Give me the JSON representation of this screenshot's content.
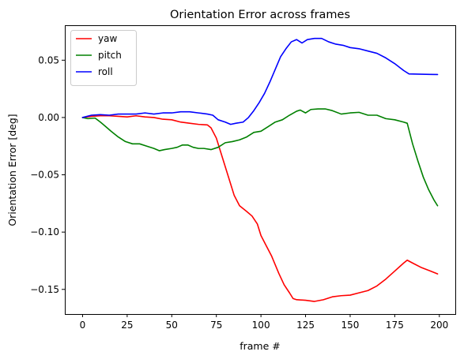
{
  "chart_data": {
    "type": "line",
    "title": "Orientation Error across frames",
    "xlabel": "frame #",
    "ylabel": "Orientation Error [deg]",
    "xlim": [
      -9.95,
      208.95
    ],
    "ylim": [
      -0.1715,
      0.0805
    ],
    "xticks": [
      0,
      25,
      50,
      75,
      100,
      125,
      150,
      175,
      200
    ],
    "xtick_labels": [
      "0",
      "25",
      "50",
      "75",
      "100",
      "125",
      "150",
      "175",
      "200"
    ],
    "yticks": [
      0.05,
      0.0,
      -0.05,
      -0.1,
      -0.15
    ],
    "ytick_labels": [
      "0.05",
      "0.00",
      "−0.05",
      "−0.10",
      "−0.15"
    ],
    "grid": false,
    "legend_position": "top-left",
    "series": [
      {
        "name": "yaw",
        "color": "#ff0000",
        "points": [
          [
            0,
            0.0
          ],
          [
            5,
            0.001
          ],
          [
            10,
            0.0015
          ],
          [
            15,
            0.0015
          ],
          [
            20,
            0.001
          ],
          [
            25,
            0.0005
          ],
          [
            30,
            0.0015
          ],
          [
            35,
            0.0005
          ],
          [
            40,
            0.0
          ],
          [
            45,
            -0.0015
          ],
          [
            50,
            -0.002
          ],
          [
            55,
            -0.004
          ],
          [
            60,
            -0.005
          ],
          [
            65,
            -0.006
          ],
          [
            70,
            -0.0065
          ],
          [
            72,
            -0.009
          ],
          [
            75,
            -0.018
          ],
          [
            78,
            -0.033
          ],
          [
            82,
            -0.053
          ],
          [
            85,
            -0.068
          ],
          [
            88,
            -0.077
          ],
          [
            92,
            -0.082
          ],
          [
            95,
            -0.086
          ],
          [
            98,
            -0.093
          ],
          [
            100,
            -0.103
          ],
          [
            103,
            -0.112
          ],
          [
            106,
            -0.121
          ],
          [
            110,
            -0.136
          ],
          [
            113,
            -0.146
          ],
          [
            116,
            -0.153
          ],
          [
            118,
            -0.158
          ],
          [
            120,
            -0.159
          ],
          [
            125,
            -0.1595
          ],
          [
            130,
            -0.1605
          ],
          [
            135,
            -0.159
          ],
          [
            140,
            -0.1565
          ],
          [
            145,
            -0.1555
          ],
          [
            150,
            -0.155
          ],
          [
            155,
            -0.153
          ],
          [
            160,
            -0.151
          ],
          [
            165,
            -0.147
          ],
          [
            170,
            -0.141
          ],
          [
            175,
            -0.134
          ],
          [
            180,
            -0.127
          ],
          [
            182,
            -0.1245
          ],
          [
            185,
            -0.127
          ],
          [
            190,
            -0.131
          ],
          [
            195,
            -0.134
          ],
          [
            199,
            -0.1365
          ]
        ]
      },
      {
        "name": "pitch",
        "color": "#008000",
        "points": [
          [
            0,
            0.0
          ],
          [
            3,
            -0.001
          ],
          [
            7,
            -0.0005
          ],
          [
            10,
            -0.004
          ],
          [
            13,
            -0.008
          ],
          [
            16,
            -0.012
          ],
          [
            20,
            -0.017
          ],
          [
            24,
            -0.021
          ],
          [
            28,
            -0.023
          ],
          [
            32,
            -0.023
          ],
          [
            36,
            -0.025
          ],
          [
            40,
            -0.027
          ],
          [
            43,
            -0.029
          ],
          [
            46,
            -0.028
          ],
          [
            50,
            -0.027
          ],
          [
            53,
            -0.026
          ],
          [
            56,
            -0.024
          ],
          [
            59,
            -0.024
          ],
          [
            62,
            -0.026
          ],
          [
            65,
            -0.027
          ],
          [
            68,
            -0.027
          ],
          [
            72,
            -0.028
          ],
          [
            76,
            -0.026
          ],
          [
            80,
            -0.022
          ],
          [
            84,
            -0.021
          ],
          [
            88,
            -0.0195
          ],
          [
            92,
            -0.017
          ],
          [
            96,
            -0.013
          ],
          [
            100,
            -0.012
          ],
          [
            104,
            -0.008
          ],
          [
            108,
            -0.004
          ],
          [
            112,
            -0.002
          ],
          [
            116,
            0.002
          ],
          [
            120,
            0.0055
          ],
          [
            122,
            0.0065
          ],
          [
            125,
            0.004
          ],
          [
            128,
            0.007
          ],
          [
            132,
            0.0075
          ],
          [
            136,
            0.0075
          ],
          [
            140,
            0.006
          ],
          [
            145,
            0.003
          ],
          [
            150,
            0.004
          ],
          [
            155,
            0.0045
          ],
          [
            160,
            0.002
          ],
          [
            165,
            0.002
          ],
          [
            170,
            -0.001
          ],
          [
            175,
            -0.002
          ],
          [
            180,
            -0.004
          ],
          [
            182,
            -0.005
          ],
          [
            185,
            -0.023
          ],
          [
            188,
            -0.038
          ],
          [
            191,
            -0.052
          ],
          [
            194,
            -0.063
          ],
          [
            197,
            -0.072
          ],
          [
            199,
            -0.077
          ]
        ]
      },
      {
        "name": "roll",
        "color": "#0000ff",
        "points": [
          [
            0,
            0.0
          ],
          [
            5,
            0.002
          ],
          [
            10,
            0.0025
          ],
          [
            15,
            0.002
          ],
          [
            20,
            0.003
          ],
          [
            25,
            0.003
          ],
          [
            30,
            0.003
          ],
          [
            35,
            0.004
          ],
          [
            40,
            0.003
          ],
          [
            45,
            0.004
          ],
          [
            50,
            0.004
          ],
          [
            55,
            0.005
          ],
          [
            60,
            0.005
          ],
          [
            65,
            0.004
          ],
          [
            70,
            0.003
          ],
          [
            73,
            0.002
          ],
          [
            76,
            -0.002
          ],
          [
            80,
            -0.004
          ],
          [
            83,
            -0.006
          ],
          [
            86,
            -0.005
          ],
          [
            90,
            -0.004
          ],
          [
            93,
            0.0
          ],
          [
            96,
            0.006
          ],
          [
            99,
            0.013
          ],
          [
            102,
            0.021
          ],
          [
            105,
            0.031
          ],
          [
            108,
            0.042
          ],
          [
            111,
            0.053
          ],
          [
            114,
            0.06
          ],
          [
            117,
            0.066
          ],
          [
            120,
            0.068
          ],
          [
            123,
            0.065
          ],
          [
            126,
            0.068
          ],
          [
            130,
            0.069
          ],
          [
            134,
            0.069
          ],
          [
            138,
            0.066
          ],
          [
            142,
            0.064
          ],
          [
            146,
            0.063
          ],
          [
            150,
            0.061
          ],
          [
            155,
            0.06
          ],
          [
            160,
            0.058
          ],
          [
            165,
            0.056
          ],
          [
            170,
            0.052
          ],
          [
            175,
            0.047
          ],
          [
            180,
            0.041
          ],
          [
            183,
            0.038
          ],
          [
            190,
            0.0378
          ],
          [
            195,
            0.0376
          ],
          [
            199,
            0.0375
          ]
        ]
      }
    ]
  }
}
